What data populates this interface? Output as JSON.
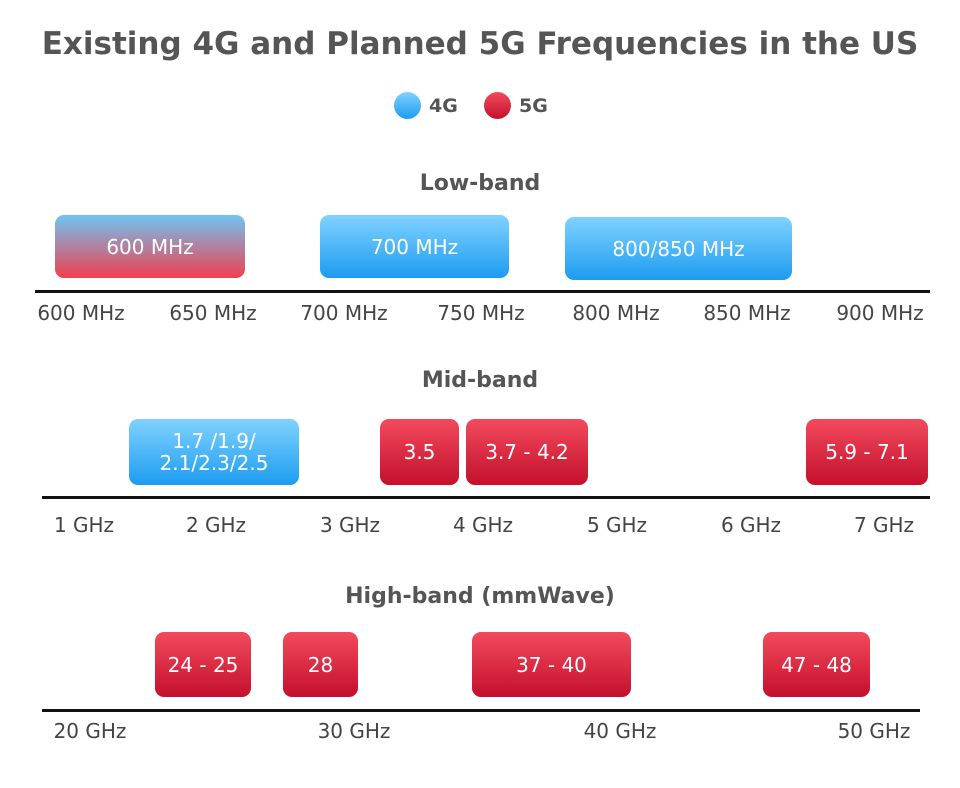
{
  "chart_data": {
    "type": "table",
    "title": "Existing 4G and Planned 5G Frequencies in the US",
    "legend": [
      {
        "label": "4G",
        "color": "#3aaef5"
      },
      {
        "label": "5G",
        "color": "#d81e3a"
      }
    ],
    "panels": [
      {
        "name": "Low-band",
        "ticks": [
          "600 MHz",
          "650 MHz",
          "700 MHz",
          "750 MHz",
          "800 MHz",
          "850 MHz",
          "900 MHz"
        ],
        "bands": [
          {
            "label": "600 MHz",
            "type": "4G/5G"
          },
          {
            "label": "700 MHz",
            "type": "4G"
          },
          {
            "label": "800/850 MHz",
            "type": "4G"
          }
        ]
      },
      {
        "name": "Mid-band",
        "ticks": [
          "1 GHz",
          "2 GHz",
          "3 GHz",
          "4 GHz",
          "5 GHz",
          "6 GHz",
          "7 GHz"
        ],
        "bands": [
          {
            "label": "1.7 /1.9/ 2.1/2.3/2.5",
            "type": "4G"
          },
          {
            "label": "3.5",
            "type": "5G"
          },
          {
            "label": "3.7 - 4.2",
            "type": "5G"
          },
          {
            "label": "5.9 - 7.1",
            "type": "5G"
          }
        ]
      },
      {
        "name": "High-band (mmWave)",
        "ticks": [
          "20 GHz",
          "30 GHz",
          "40 GHz",
          "50 GHz"
        ],
        "bands": [
          {
            "label": "24 - 25",
            "type": "5G"
          },
          {
            "label": "28",
            "type": "5G"
          },
          {
            "label": "37 - 40",
            "type": "5G"
          },
          {
            "label": "47 - 48",
            "type": "5G"
          }
        ]
      }
    ]
  }
}
